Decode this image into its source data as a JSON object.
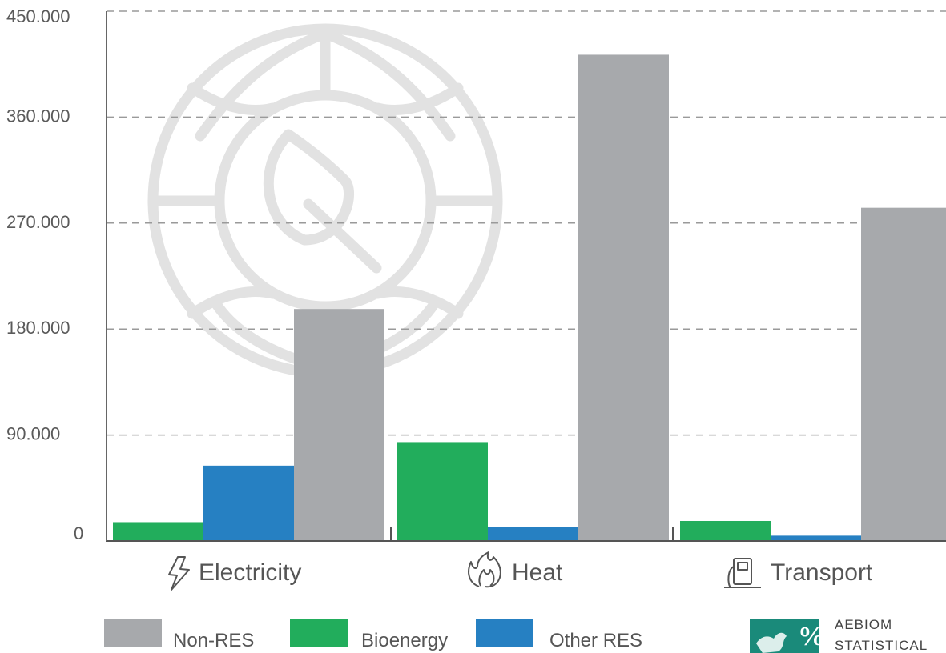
{
  "chart_data": {
    "type": "bar",
    "title": "",
    "xlabel": "",
    "ylabel": "",
    "categories": [
      "Electricity",
      "Heat",
      "Transport"
    ],
    "category_icons": [
      "lightning-icon",
      "flame-icon",
      "fuel-pump-icon"
    ],
    "series": [
      {
        "name": "Bioenergy",
        "color": "#22ad5c",
        "values": [
          16000,
          84000,
          17000
        ]
      },
      {
        "name": "Other RES",
        "color": "#2680c2",
        "values": [
          64000,
          12000,
          4500
        ]
      },
      {
        "name": "Non-RES",
        "color": "#a7a9ac",
        "values": [
          197000,
          413000,
          283000
        ]
      }
    ],
    "legend_order": [
      "Non-RES",
      "Bioenergy",
      "Other RES"
    ],
    "legend_position": "bottom",
    "ylim": [
      0,
      450000
    ],
    "yticks": [
      0,
      90000,
      180000,
      270000,
      360000,
      450000
    ],
    "ytick_labels": [
      "0",
      "90.000",
      "180.000",
      "270.000",
      "360.000",
      "450.000"
    ],
    "grid": "horizontal dashed",
    "watermark": "globe-leaf-icon"
  },
  "logo": {
    "icon": "europe-map-percent-icon",
    "color": "#1a8a7a",
    "line1": "AEBIOM",
    "line2": "STATISTICAL"
  }
}
